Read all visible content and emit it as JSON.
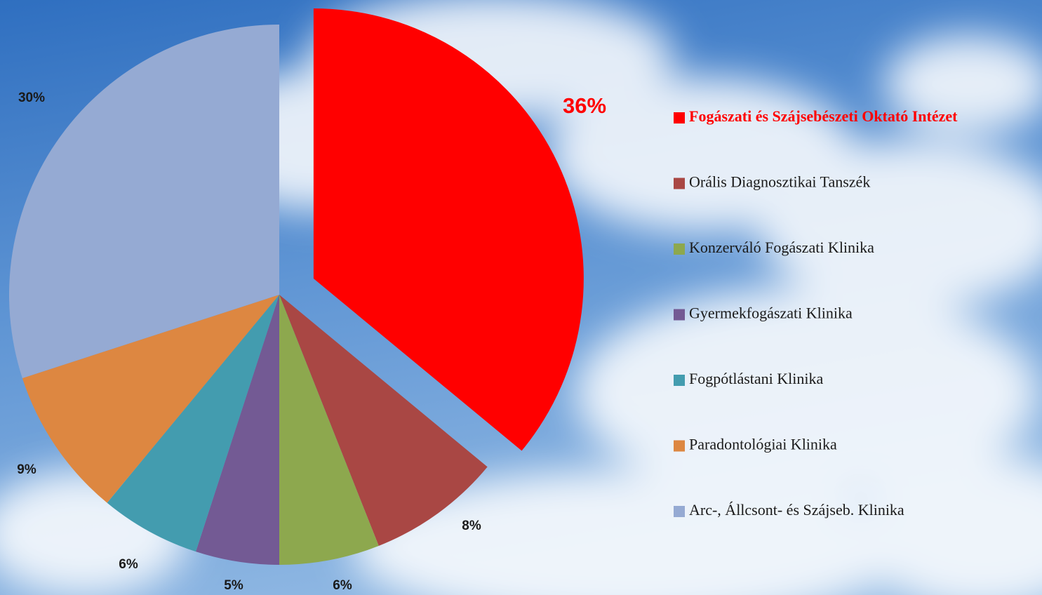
{
  "chart_data": {
    "type": "pie",
    "categories": [
      "Fogászati és Szájsebészeti Oktató Intézet",
      "Orális Diagnosztikai Tanszék",
      "Konzerváló Fogászati Klinika",
      "Gyermekfogászati Klinika",
      "Fogpótlástani Klinika",
      "Paradontológiai Klinika",
      "Arc-, Állcsont- és Szájseb. Klinika"
    ],
    "values": [
      36,
      8,
      6,
      5,
      6,
      9,
      30
    ],
    "value_labels": [
      "36%",
      "8%",
      "6%",
      "5%",
      "6%",
      "9%",
      "30%"
    ],
    "colors": [
      "#ff0000",
      "#a94744",
      "#8da84e",
      "#735a94",
      "#439caf",
      "#dd8741",
      "#95aad3"
    ]
  }
}
